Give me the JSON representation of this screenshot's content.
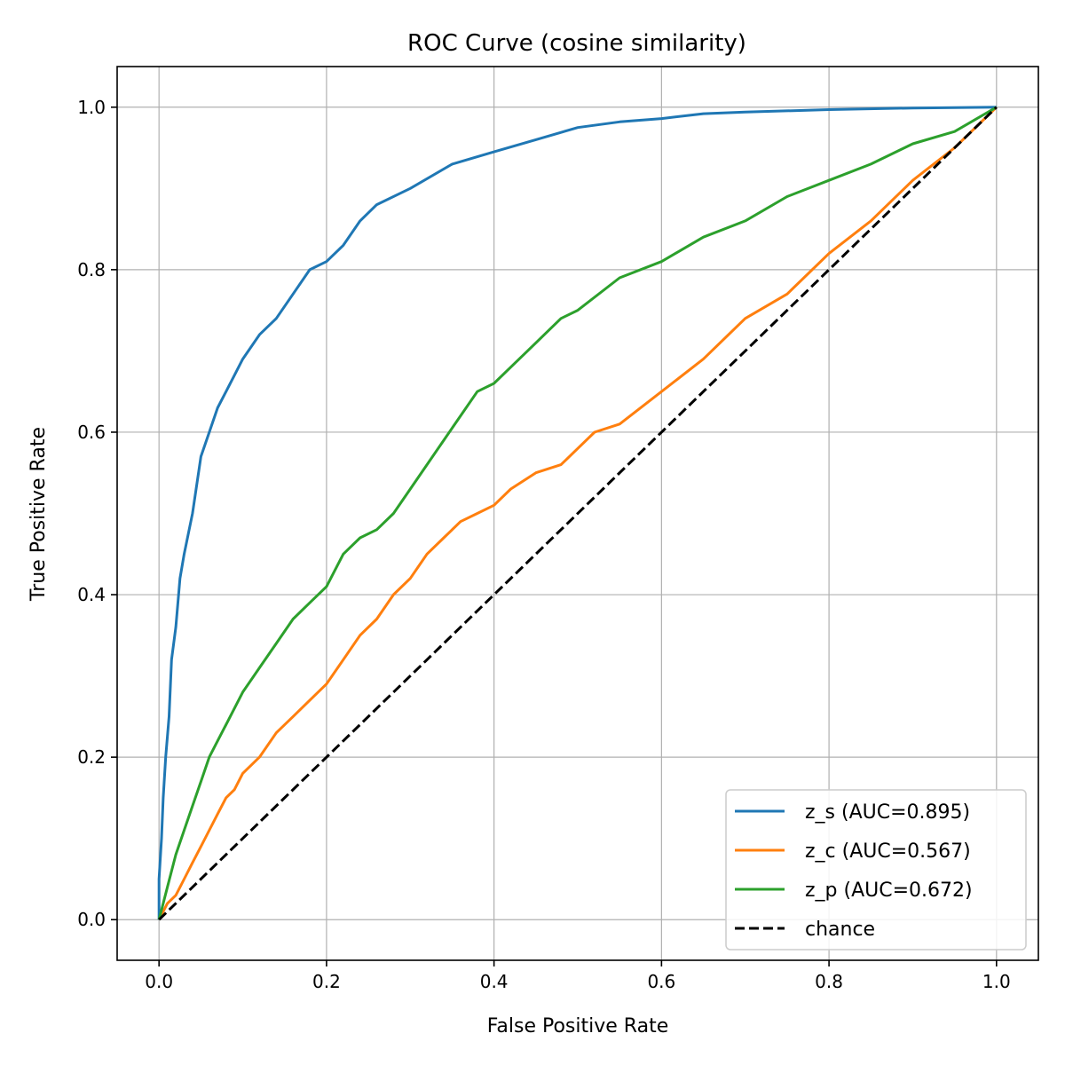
{
  "chart_data": {
    "type": "line",
    "title": "ROC Curve (cosine similarity)",
    "xlabel": "False Positive Rate",
    "ylabel": "True Positive Rate",
    "xlim": [
      -0.05,
      1.05
    ],
    "ylim": [
      -0.05,
      1.05
    ],
    "xticks": [
      "0.0",
      "0.2",
      "0.4",
      "0.6",
      "0.8",
      "1.0"
    ],
    "yticks": [
      "0.0",
      "0.2",
      "0.4",
      "0.6",
      "0.8",
      "1.0"
    ],
    "grid": true,
    "legend_position": "lower-right",
    "series": [
      {
        "name": "z_s (AUC=0.895)",
        "color": "#1f77b4",
        "style": "solid",
        "x": [
          0,
          0,
          0.003,
          0.005,
          0.008,
          0.012,
          0.015,
          0.02,
          0.025,
          0.03,
          0.04,
          0.05,
          0.06,
          0.07,
          0.08,
          0.09,
          0.1,
          0.12,
          0.14,
          0.16,
          0.18,
          0.2,
          0.22,
          0.24,
          0.26,
          0.3,
          0.35,
          0.4,
          0.45,
          0.5,
          0.55,
          0.6,
          0.65,
          0.7,
          0.8,
          0.9,
          1.0
        ],
        "y": [
          0,
          0.05,
          0.1,
          0.15,
          0.2,
          0.25,
          0.32,
          0.36,
          0.42,
          0.45,
          0.5,
          0.57,
          0.6,
          0.63,
          0.65,
          0.67,
          0.69,
          0.72,
          0.74,
          0.77,
          0.8,
          0.81,
          0.83,
          0.86,
          0.88,
          0.9,
          0.93,
          0.945,
          0.96,
          0.975,
          0.982,
          0.986,
          0.992,
          0.994,
          0.997,
          0.999,
          1.0
        ]
      },
      {
        "name": "z_c (AUC=0.567)",
        "color": "#ff7f0e",
        "style": "solid",
        "x": [
          0,
          0.01,
          0.02,
          0.03,
          0.04,
          0.05,
          0.06,
          0.07,
          0.08,
          0.09,
          0.1,
          0.12,
          0.14,
          0.16,
          0.18,
          0.2,
          0.22,
          0.24,
          0.26,
          0.28,
          0.3,
          0.32,
          0.34,
          0.36,
          0.38,
          0.4,
          0.42,
          0.45,
          0.48,
          0.5,
          0.52,
          0.55,
          0.6,
          0.65,
          0.7,
          0.75,
          0.8,
          0.85,
          0.9,
          0.95,
          1.0
        ],
        "y": [
          0,
          0.02,
          0.03,
          0.05,
          0.07,
          0.09,
          0.11,
          0.13,
          0.15,
          0.16,
          0.18,
          0.2,
          0.23,
          0.25,
          0.27,
          0.29,
          0.32,
          0.35,
          0.37,
          0.4,
          0.42,
          0.45,
          0.47,
          0.49,
          0.5,
          0.51,
          0.53,
          0.55,
          0.56,
          0.58,
          0.6,
          0.61,
          0.65,
          0.69,
          0.74,
          0.77,
          0.82,
          0.86,
          0.91,
          0.95,
          1.0
        ]
      },
      {
        "name": "z_p (AUC=0.672)",
        "color": "#2ca02c",
        "style": "solid",
        "x": [
          0,
          0.01,
          0.02,
          0.03,
          0.04,
          0.05,
          0.06,
          0.07,
          0.08,
          0.1,
          0.12,
          0.14,
          0.16,
          0.18,
          0.2,
          0.22,
          0.24,
          0.26,
          0.28,
          0.3,
          0.32,
          0.34,
          0.36,
          0.38,
          0.4,
          0.42,
          0.44,
          0.46,
          0.48,
          0.5,
          0.55,
          0.6,
          0.65,
          0.7,
          0.75,
          0.8,
          0.85,
          0.9,
          0.95,
          1.0
        ],
        "y": [
          0,
          0.04,
          0.08,
          0.11,
          0.14,
          0.17,
          0.2,
          0.22,
          0.24,
          0.28,
          0.31,
          0.34,
          0.37,
          0.39,
          0.41,
          0.45,
          0.47,
          0.48,
          0.5,
          0.53,
          0.56,
          0.59,
          0.62,
          0.65,
          0.66,
          0.68,
          0.7,
          0.72,
          0.74,
          0.75,
          0.79,
          0.81,
          0.84,
          0.86,
          0.89,
          0.91,
          0.93,
          0.955,
          0.97,
          1.0
        ]
      },
      {
        "name": "chance",
        "color": "#000000",
        "style": "dashed",
        "x": [
          0,
          1
        ],
        "y": [
          0,
          1
        ]
      }
    ]
  }
}
